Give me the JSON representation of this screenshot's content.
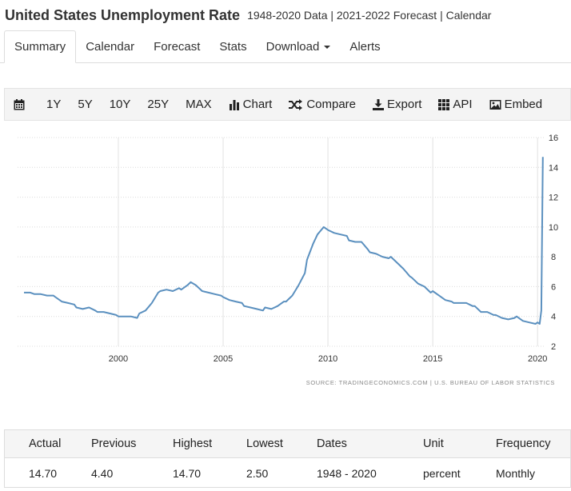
{
  "header": {
    "title": "United States Unemployment Rate",
    "subtitle": "1948-2020 Data | 2021-2022 Forecast | Calendar"
  },
  "tabs": [
    {
      "label": "Summary"
    },
    {
      "label": "Calendar"
    },
    {
      "label": "Forecast"
    },
    {
      "label": "Stats"
    },
    {
      "label": "Download"
    },
    {
      "label": "Alerts"
    }
  ],
  "toolbar": {
    "calendar_icon": "calendar-icon",
    "ranges": [
      "1Y",
      "5Y",
      "10Y",
      "25Y",
      "MAX"
    ],
    "chart_label": "Chart",
    "compare_label": "Compare",
    "export_label": "Export",
    "api_label": "API",
    "embed_label": "Embed"
  },
  "chart_data": {
    "type": "line",
    "line_color": "#5b90bf",
    "x_ticks": [
      2000,
      2005,
      2010,
      2015,
      2020
    ],
    "y_ticks": [
      2,
      4,
      6,
      8,
      10,
      12,
      14,
      16
    ],
    "xlim": [
      1995.5,
      2020.45
    ],
    "ylim": [
      2,
      16
    ],
    "grid": true,
    "source": "SOURCE: TRADINGECONOMICS.COM | U.S. BUREAU OF LABOR STATISTICS",
    "series": [
      {
        "points": [
          [
            1995.5,
            5.6
          ],
          [
            1995.8,
            5.6
          ],
          [
            1996.0,
            5.5
          ],
          [
            1996.3,
            5.5
          ],
          [
            1996.6,
            5.4
          ],
          [
            1996.9,
            5.4
          ],
          [
            1997.0,
            5.3
          ],
          [
            1997.3,
            5.0
          ],
          [
            1997.6,
            4.9
          ],
          [
            1997.9,
            4.8
          ],
          [
            1998.0,
            4.6
          ],
          [
            1998.3,
            4.5
          ],
          [
            1998.6,
            4.6
          ],
          [
            1998.9,
            4.4
          ],
          [
            1999.0,
            4.3
          ],
          [
            1999.3,
            4.3
          ],
          [
            1999.6,
            4.2
          ],
          [
            1999.9,
            4.1
          ],
          [
            2000.0,
            4.0
          ],
          [
            2000.3,
            4.0
          ],
          [
            2000.6,
            4.0
          ],
          [
            2000.9,
            3.9
          ],
          [
            2001.0,
            4.2
          ],
          [
            2001.3,
            4.4
          ],
          [
            2001.6,
            4.9
          ],
          [
            2001.9,
            5.6
          ],
          [
            2002.0,
            5.7
          ],
          [
            2002.3,
            5.8
          ],
          [
            2002.6,
            5.7
          ],
          [
            2002.9,
            5.9
          ],
          [
            2003.0,
            5.8
          ],
          [
            2003.3,
            6.1
          ],
          [
            2003.45,
            6.3
          ],
          [
            2003.7,
            6.1
          ],
          [
            2004.0,
            5.7
          ],
          [
            2004.3,
            5.6
          ],
          [
            2004.6,
            5.5
          ],
          [
            2004.9,
            5.4
          ],
          [
            2005.0,
            5.3
          ],
          [
            2005.3,
            5.1
          ],
          [
            2005.6,
            5.0
          ],
          [
            2005.9,
            4.9
          ],
          [
            2006.0,
            4.7
          ],
          [
            2006.3,
            4.6
          ],
          [
            2006.6,
            4.5
          ],
          [
            2006.9,
            4.4
          ],
          [
            2007.0,
            4.6
          ],
          [
            2007.3,
            4.5
          ],
          [
            2007.6,
            4.7
          ],
          [
            2007.9,
            5.0
          ],
          [
            2008.0,
            5.0
          ],
          [
            2008.3,
            5.4
          ],
          [
            2008.6,
            6.1
          ],
          [
            2008.9,
            6.9
          ],
          [
            2009.0,
            7.8
          ],
          [
            2009.3,
            8.9
          ],
          [
            2009.5,
            9.5
          ],
          [
            2009.8,
            10.0
          ],
          [
            2010.0,
            9.8
          ],
          [
            2010.3,
            9.6
          ],
          [
            2010.6,
            9.5
          ],
          [
            2010.9,
            9.4
          ],
          [
            2011.0,
            9.1
          ],
          [
            2011.3,
            9.0
          ],
          [
            2011.6,
            9.0
          ],
          [
            2011.9,
            8.5
          ],
          [
            2012.0,
            8.3
          ],
          [
            2012.3,
            8.2
          ],
          [
            2012.6,
            8.0
          ],
          [
            2012.9,
            7.9
          ],
          [
            2013.0,
            8.0
          ],
          [
            2013.3,
            7.6
          ],
          [
            2013.6,
            7.2
          ],
          [
            2013.9,
            6.7
          ],
          [
            2014.0,
            6.6
          ],
          [
            2014.3,
            6.2
          ],
          [
            2014.6,
            6.0
          ],
          [
            2014.9,
            5.6
          ],
          [
            2015.0,
            5.7
          ],
          [
            2015.3,
            5.4
          ],
          [
            2015.6,
            5.1
          ],
          [
            2015.9,
            5.0
          ],
          [
            2016.0,
            4.9
          ],
          [
            2016.3,
            4.9
          ],
          [
            2016.6,
            4.9
          ],
          [
            2016.9,
            4.7
          ],
          [
            2017.0,
            4.7
          ],
          [
            2017.3,
            4.3
          ],
          [
            2017.6,
            4.3
          ],
          [
            2017.9,
            4.1
          ],
          [
            2018.0,
            4.1
          ],
          [
            2018.3,
            3.9
          ],
          [
            2018.6,
            3.8
          ],
          [
            2018.9,
            3.9
          ],
          [
            2019.0,
            4.0
          ],
          [
            2019.3,
            3.7
          ],
          [
            2019.6,
            3.6
          ],
          [
            2019.9,
            3.5
          ],
          [
            2020.0,
            3.6
          ],
          [
            2020.1,
            3.5
          ],
          [
            2020.18,
            4.4
          ],
          [
            2020.25,
            14.7
          ]
        ]
      }
    ]
  },
  "stats_table": {
    "headers": [
      "Actual",
      "Previous",
      "Highest",
      "Lowest",
      "Dates",
      "Unit",
      "Frequency"
    ],
    "values": [
      "14.70",
      "4.40",
      "14.70",
      "2.50",
      "1948 - 2020",
      "percent",
      "Monthly"
    ]
  }
}
